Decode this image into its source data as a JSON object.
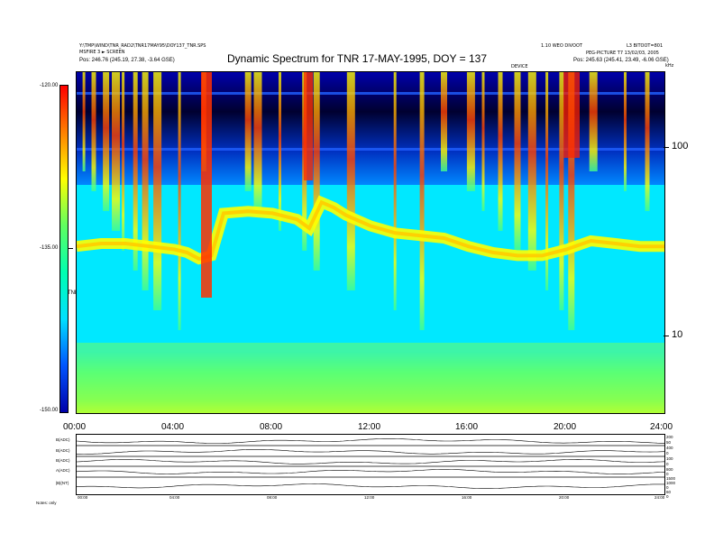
{
  "header": {
    "left_line1": "Y:\\TMP\\WIND\\TNR_RAD2\\TNR17MAY95\\DOY137_TNR.SPS",
    "left_line2": "MSFIRE 3 ► SCREEN",
    "left_line3": "Pos:    246.76 (245.19, 27.38, -3.64 GSE)",
    "right_top_mid": "1.10 WEO DIVOOT",
    "right_top": "L3 BITOOT=801",
    "right_line2": "PEG-PICTURE T7 13/02/03, 2005",
    "right_line3": "Pos:    245.63 (245.41, 23.49, -6.06 GSE)",
    "center_small": "DEVICE",
    "corner_label": "kHz"
  },
  "chart_data": {
    "type": "heatmap",
    "title": "Dynamic Spectrum for TNR 17-MAY-1995, DOY = 137",
    "xlabel": "",
    "ylabel": "",
    "x_range": [
      0,
      24
    ],
    "x_ticks": [
      "00:00",
      "04:00",
      "08:00",
      "12:00",
      "16:00",
      "20:00",
      "24:00"
    ],
    "y_scale": "log",
    "y_range": [
      4,
      230
    ],
    "y_ticks": [
      "100",
      "10"
    ],
    "colorbar": {
      "label": "TNR",
      "range": [
        -150,
        -120
      ],
      "ticks": [
        "-120.00",
        "-135.00",
        "-150.00"
      ],
      "colors": [
        "#0000aa",
        "#0055ff",
        "#00e0ff",
        "#00ffb0",
        "#60ff60",
        "#ffff00",
        "#ff8000",
        "#ff0000"
      ]
    },
    "features": {
      "plasma_line_hours": [
        0,
        1,
        2,
        3,
        4,
        4.5,
        5,
        5.5,
        6,
        7,
        8,
        9,
        9.5,
        10,
        10.5,
        11,
        12,
        13,
        14,
        15,
        16,
        17,
        18,
        19,
        20,
        21,
        22,
        23,
        24
      ],
      "plasma_line_khz": [
        29,
        30,
        30,
        29,
        28,
        27,
        25,
        26,
        43,
        44,
        43,
        40,
        36,
        49,
        46,
        42,
        37,
        34,
        33,
        32,
        29,
        27,
        26,
        26,
        28,
        31,
        30,
        29,
        29
      ],
      "type3_burst_hours": [
        0.3,
        0.7,
        1.2,
        1.6,
        1.9,
        2.4,
        2.8,
        3.3,
        4.2,
        5.2,
        7.0,
        7.4,
        8.3,
        9.3,
        9.8,
        11.2,
        13.0,
        14.1,
        15.0,
        16.1,
        16.6,
        17.3,
        18.0,
        18.6,
        19.2,
        19.8,
        20.2,
        21.1,
        22.4,
        23.3
      ]
    }
  },
  "summary_panel": {
    "left_labels": [
      "B(ADC)",
      "B(ADC)",
      "B(ADC)",
      "A(ADC)",
      "|B|(NT)"
    ],
    "right_labels": [
      "200",
      "50",
      "400",
      "0",
      "100",
      "0",
      "800",
      "0",
      "1500",
      "1000",
      "0",
      "60",
      "0"
    ],
    "x_ticks": [
      "00:00",
      "04:00",
      "08:00",
      "12:00",
      "16:00",
      "20:00",
      "24:00"
    ],
    "footer_label": "Notes:    only"
  }
}
